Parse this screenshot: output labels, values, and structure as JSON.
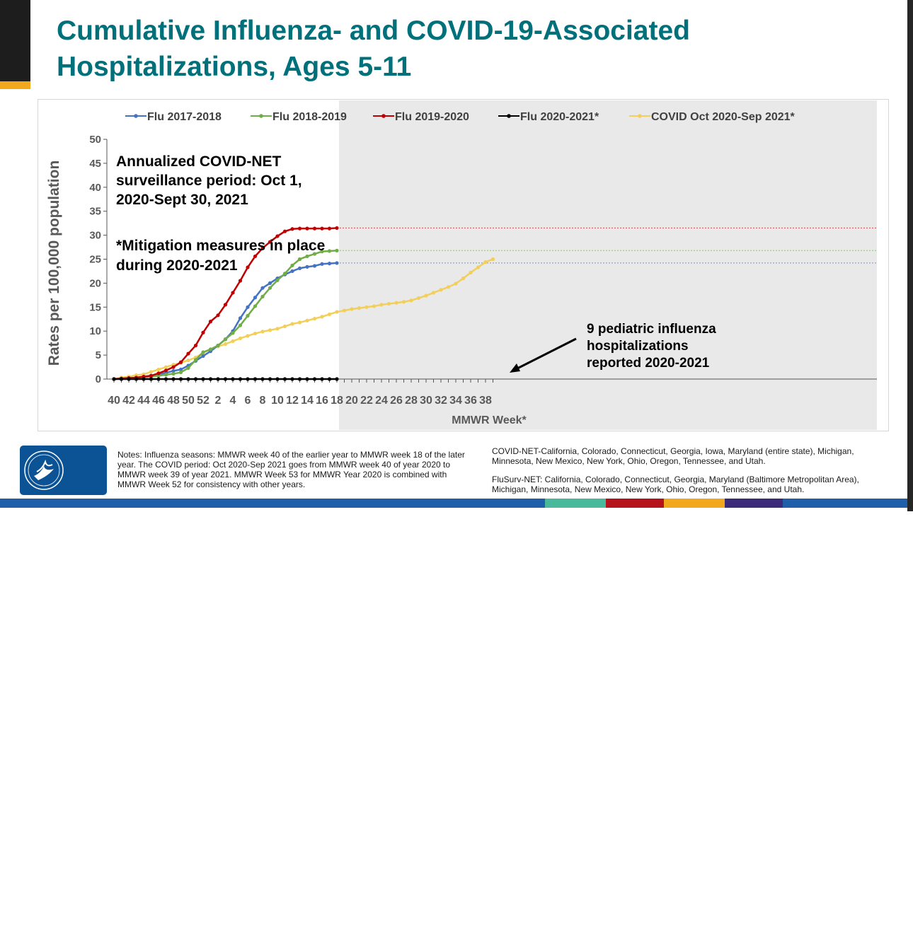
{
  "slide": {
    "title": "Cumulative Influenza- and COVID-19-Associated Hospitalizations, Ages 5-11",
    "colors": {
      "title": "#00707a",
      "accent_orange": "#f2a81d",
      "cdc_blue": "#0b5394"
    }
  },
  "chart_data": {
    "type": "line",
    "ylabel": "Rates per 100,000 population",
    "xlabel": "MMWR Week*",
    "ylim": [
      0,
      50
    ],
    "yticks": [
      0,
      5,
      10,
      15,
      20,
      25,
      30,
      35,
      40,
      45,
      50
    ],
    "x_weeks": [
      40,
      41,
      42,
      43,
      44,
      45,
      46,
      47,
      48,
      49,
      50,
      51,
      52,
      1,
      2,
      3,
      4,
      5,
      6,
      7,
      8,
      9,
      10,
      11,
      12,
      13,
      14,
      15,
      16,
      17,
      18,
      19,
      20,
      21,
      22,
      23,
      24,
      25,
      26,
      27,
      28,
      29,
      30,
      31,
      32,
      33,
      34,
      35,
      36,
      37,
      38,
      39
    ],
    "x_tick_labels": [
      "40",
      "42",
      "44",
      "46",
      "48",
      "50",
      "52",
      "2",
      "4",
      "6",
      "8",
      "10",
      "12",
      "14",
      "16",
      "18",
      "20",
      "22",
      "24",
      "26",
      "28",
      "30",
      "32",
      "34",
      "36",
      "38"
    ],
    "shaded_region_start_week": 18,
    "series": [
      {
        "name": "Flu 2017-2018",
        "color": "#4472c4",
        "values": [
          0,
          0.1,
          0.2,
          0.3,
          0.5,
          0.7,
          1,
          1.3,
          1.7,
          2,
          2.8,
          3.8,
          4.8,
          5.8,
          7,
          8.3,
          10,
          12.7,
          15,
          17,
          19,
          20,
          21,
          21.8,
          22.5,
          23.1,
          23.4,
          23.6,
          24,
          24.1,
          24.2
        ]
      },
      {
        "name": "Flu 2018-2019",
        "color": "#70ad47",
        "values": [
          0,
          0.1,
          0.2,
          0.3,
          0.4,
          0.5,
          0.7,
          0.9,
          1.1,
          1.4,
          2.3,
          4,
          5.6,
          6.2,
          7,
          8.3,
          9.6,
          11.2,
          13.2,
          15.2,
          17.2,
          19,
          20.6,
          22,
          23.7,
          25,
          25.6,
          26.1,
          26.6,
          26.7,
          26.8
        ]
      },
      {
        "name": "Flu 2019-2020",
        "color": "#c00000",
        "values": [
          0,
          0.1,
          0.2,
          0.3,
          0.5,
          0.7,
          1.2,
          1.8,
          2.5,
          3.5,
          5.3,
          7,
          9.7,
          12,
          13.3,
          15.5,
          18,
          20.5,
          23.3,
          25.6,
          27.3,
          28.6,
          29.8,
          30.8,
          31.3,
          31.4,
          31.4,
          31.4,
          31.4,
          31.4,
          31.5
        ]
      },
      {
        "name": "Flu 2020-2021*",
        "color": "#000000",
        "values": [
          0,
          0,
          0,
          0,
          0,
          0,
          0,
          0,
          0,
          0,
          0,
          0,
          0,
          0,
          0,
          0,
          0,
          0,
          0,
          0,
          0,
          0,
          0,
          0,
          0,
          0,
          0,
          0,
          0,
          0,
          0
        ]
      },
      {
        "name": "COVID Oct 2020-Sep 2021*",
        "color": "#f2cf5b",
        "values": [
          0,
          0.3,
          0.5,
          0.8,
          1,
          1.5,
          2,
          2.5,
          3,
          3.4,
          3.9,
          4.5,
          5.5,
          6.2,
          6.8,
          7.3,
          7.9,
          8.5,
          9,
          9.5,
          9.9,
          10.2,
          10.5,
          11,
          11.5,
          11.8,
          12.2,
          12.6,
          13,
          13.5,
          14,
          14.3,
          14.6,
          14.8,
          15,
          15.2,
          15.5,
          15.7,
          15.9,
          16.1,
          16.4,
          16.9,
          17.4,
          18,
          18.6,
          19.2,
          19.9,
          21,
          22.2,
          23.3,
          24.4,
          25
        ]
      }
    ],
    "annotations": {
      "covid_period": "Annualized COVID-NET surveillance period: Oct 1, 2020-Sept 30, 2021",
      "mitigation": "*Mitigation measures in place during 2020-2021",
      "pediatric": "9 pediatric influenza hospitalizations reported 2020-2021"
    }
  },
  "notes": {
    "left": "Notes: Influenza seasons: MMWR week 40 of the earlier year to MMWR week 18 of the later year. The COVID period: Oct 2020-Sep 2021 goes from MMWR week 40 of year 2020 to MMWR week 39 of year 2021. MMWR Week 53 for MMWR Year 2020 is combined with MMWR Week 52 for consistency with other years.",
    "right1": "COVID-NET-California, Colorado, Connecticut, Georgia, Iowa, Maryland (entire state), Michigan, Minnesota, New Mexico, New York, Ohio, Oregon, Tennessee, and Utah.",
    "right2": "FluSurv-NET: California, Colorado, Connecticut, Georgia, Maryland (Baltimore Metropolitan Area), Michigan, Minnesota, New Mexico, New York, Ohio, Oregon, Tennessee, and Utah."
  },
  "logo": {
    "text": "CDC"
  },
  "footer_colors": [
    "#1f5ea8",
    "#1f5ea8",
    "#1f5ea8",
    "#49b99b",
    "#b5121b",
    "#f2a81d",
    "#3b2a7a",
    "#1f5ea8"
  ]
}
